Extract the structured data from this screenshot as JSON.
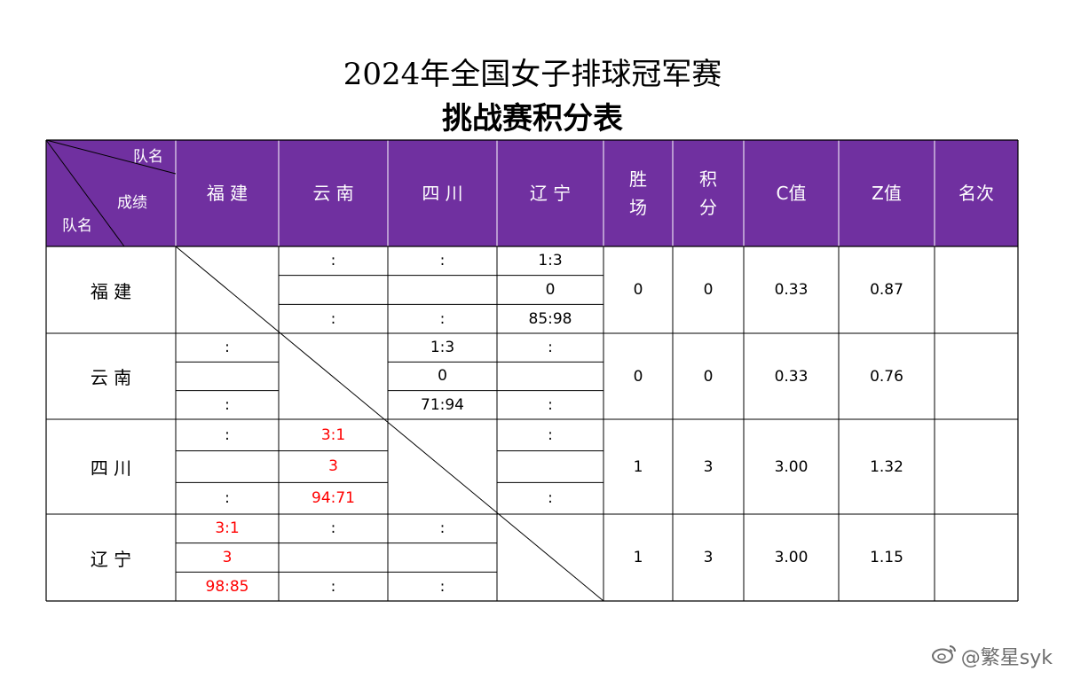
{
  "title": "2024年全国女子排球冠军赛",
  "subtitle": "挑战赛积分表",
  "corner": {
    "top": "队名",
    "middle": "成绩",
    "bottom": "队名"
  },
  "headers": {
    "teams": [
      "福 建",
      "云 南",
      "四 川",
      "辽 宁"
    ],
    "wins": "胜\n场",
    "points": "积\n分",
    "c": "C值",
    "z": "Z值",
    "rank": "名次"
  },
  "rows": [
    {
      "team": "福 建",
      "cells": [
        null,
        {
          "a": ":",
          "b": "",
          "c": ":",
          "red": false
        },
        {
          "a": ":",
          "b": "",
          "c": ":",
          "red": false
        },
        {
          "a": "1:3",
          "b": "0",
          "c": "85:98",
          "red": false
        }
      ],
      "wins": "0",
      "points": "0",
      "c": "0.33",
      "z": "0.87",
      "rank": ""
    },
    {
      "team": "云 南",
      "cells": [
        {
          "a": ":",
          "b": "",
          "c": ":",
          "red": false
        },
        null,
        {
          "a": "1:3",
          "b": "0",
          "c": "71:94",
          "red": false
        },
        {
          "a": ":",
          "b": "",
          "c": ":",
          "red": false
        }
      ],
      "wins": "0",
      "points": "0",
      "c": "0.33",
      "z": "0.76",
      "rank": ""
    },
    {
      "team": "四 川",
      "cells": [
        {
          "a": ":",
          "b": "",
          "c": ":",
          "red": false
        },
        {
          "a": "3:1",
          "b": "3",
          "c": "94:71",
          "red": true
        },
        null,
        {
          "a": ":",
          "b": "",
          "c": ":",
          "red": false
        }
      ],
      "wins": "1",
      "points": "3",
      "c": "3.00",
      "z": "1.32",
      "rank": ""
    },
    {
      "team": "辽 宁",
      "cells": [
        {
          "a": "3:1",
          "b": "3",
          "c": "98:85",
          "red": true
        },
        {
          "a": ":",
          "b": "",
          "c": ":",
          "red": false
        },
        {
          "a": ":",
          "b": "",
          "c": ":",
          "red": false
        },
        null
      ],
      "wins": "1",
      "points": "3",
      "c": "3.00",
      "z": "1.15",
      "rank": ""
    }
  ],
  "colors": {
    "header_bg": "#7030a0",
    "win_text": "#ff0000"
  },
  "watermark": {
    "icon": "weibo-icon",
    "text": "@繁星syk"
  }
}
